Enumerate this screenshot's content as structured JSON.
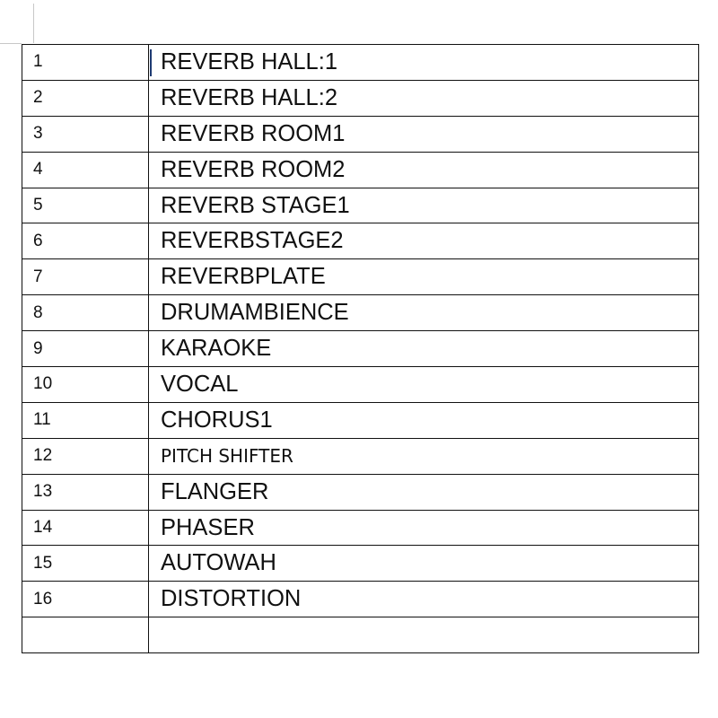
{
  "table": {
    "rows": [
      {
        "num": "1",
        "name": "REVERB HALL:1"
      },
      {
        "num": "2",
        "name": "REVERB HALL:2"
      },
      {
        "num": "3",
        "name": "REVERB ROOM1"
      },
      {
        "num": "4",
        "name": "REVERB ROOM2"
      },
      {
        "num": "5",
        "name": "REVERB STAGE1"
      },
      {
        "num": "6",
        "name": "REVERBSTAGE2"
      },
      {
        "num": "7",
        "name": "REVERBPLATE"
      },
      {
        "num": "8",
        "name": "DRUMAMBIENCE"
      },
      {
        "num": "9",
        "name": "KARAOKE"
      },
      {
        "num": "10",
        "name": "VOCAL"
      },
      {
        "num": "11",
        "name": "CHORUS1"
      },
      {
        "num": "12",
        "name": "PITCH SHIFTER"
      },
      {
        "num": "13",
        "name": "FLANGER"
      },
      {
        "num": "14",
        "name": "PHASER"
      },
      {
        "num": "15",
        "name": "AUTOWAH"
      },
      {
        "num": "16",
        "name": "DISTORTION"
      },
      {
        "num": "",
        "name": ""
      }
    ]
  }
}
